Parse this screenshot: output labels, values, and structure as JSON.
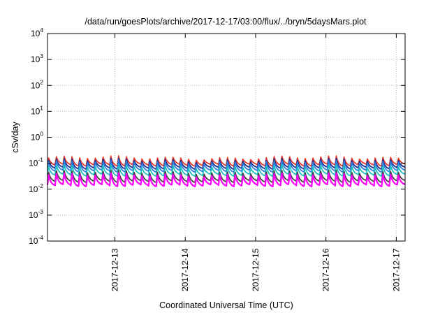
{
  "chart_data": {
    "type": "line",
    "title": "/data/run/goesPlots/archive/2017-12-17/03:00/flux/../bryn/5daysMars.plot",
    "xlabel": "Coordinated Universal Time (UTC)",
    "ylabel": "cSv/day",
    "yscale": "log",
    "ylim": [
      0.0001,
      10000
    ],
    "y_ticks": [
      {
        "base": "10",
        "exp": "-4"
      },
      {
        "base": "10",
        "exp": "-3"
      },
      {
        "base": "10",
        "exp": "-2"
      },
      {
        "base": "10",
        "exp": "-1"
      },
      {
        "base": "10",
        "exp": "0"
      },
      {
        "base": "10",
        "exp": "1"
      },
      {
        "base": "10",
        "exp": "2"
      },
      {
        "base": "10",
        "exp": "3"
      },
      {
        "base": "10",
        "exp": "4"
      }
    ],
    "xlim": [
      "2017-12-12T01:00",
      "2017-12-17T03:00"
    ],
    "x_ticks": [
      "2017-12-13",
      "2017-12-14",
      "2017-12-15",
      "2017-12-16",
      "2017-12-17"
    ],
    "grid": true,
    "sawtooth_teeth_per_day": 9,
    "series": [
      {
        "color": "#e8392b",
        "peak": 0.16,
        "trough": 0.085
      },
      {
        "color": "#1f2f8f",
        "peak": 0.13,
        "trough": 0.065
      },
      {
        "color": "#2f7fe0",
        "peak": 0.11,
        "trough": 0.05
      },
      {
        "color": "#20c0c0",
        "peak": 0.075,
        "trough": 0.035
      },
      {
        "color": "#444444",
        "peak": 0.045,
        "trough": 0.02
      },
      {
        "color": "#ff00ff",
        "peak": 0.035,
        "trough": 0.014
      }
    ]
  }
}
